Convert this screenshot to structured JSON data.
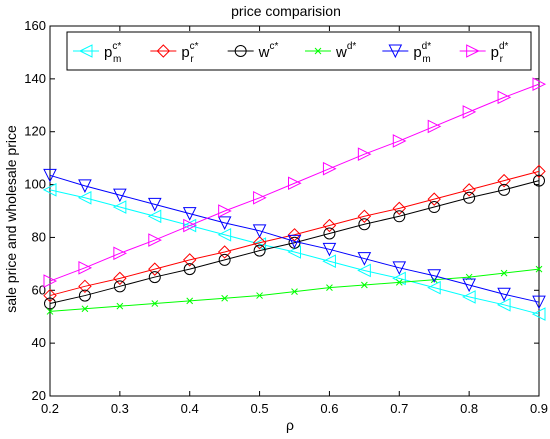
{
  "chart_data": {
    "type": "line",
    "title": "price comparision",
    "xlabel": "ρ",
    "ylabel": "sale price and wholesale price",
    "xlim": [
      0.2,
      0.9
    ],
    "ylim": [
      20,
      160
    ],
    "xticks": [
      "0.2",
      "0.3",
      "0.4",
      "0.5",
      "0.6",
      "0.7",
      "0.8",
      "0.9"
    ],
    "yticks": [
      "20",
      "40",
      "60",
      "80",
      "100",
      "120",
      "140",
      "160"
    ],
    "grid": false,
    "legend_position": "top",
    "x": [
      0.2,
      0.25,
      0.3,
      0.35,
      0.4,
      0.45,
      0.5,
      0.55,
      0.6,
      0.65,
      0.7,
      0.75,
      0.8,
      0.85,
      0.9
    ],
    "series": [
      {
        "name": "p_m^{c*}",
        "legend_base": "p",
        "legend_sub": "m",
        "legend_sup": "c*",
        "color": "#00ffff",
        "marker": "triangle-left",
        "values": [
          98,
          95,
          91.5,
          88,
          84.5,
          81,
          77.5,
          74.5,
          71,
          67.5,
          64.5,
          61,
          57.5,
          54.5,
          51
        ]
      },
      {
        "name": "p_r^{c*}",
        "legend_base": "p",
        "legend_sub": "r",
        "legend_sup": "c*",
        "color": "#ff0000",
        "marker": "diamond",
        "values": [
          58,
          61.5,
          64.5,
          68,
          71.5,
          74.5,
          78,
          81,
          84.5,
          88,
          91,
          94.5,
          98,
          101.5,
          105
        ]
      },
      {
        "name": "w^{c*}",
        "legend_base": "w",
        "legend_sub": "",
        "legend_sup": "c*",
        "color": "#000000",
        "marker": "circle",
        "values": [
          55,
          58,
          61.5,
          65,
          68,
          71.5,
          75,
          78,
          81.5,
          85,
          88,
          91.5,
          95,
          98,
          101.5
        ]
      },
      {
        "name": "w^{d*}",
        "legend_base": "w",
        "legend_sub": "",
        "legend_sup": "d*",
        "color": "#00ff00",
        "marker": "x",
        "values": [
          52,
          53,
          54,
          55,
          56,
          57,
          58,
          59.5,
          61,
          62,
          63,
          64,
          65,
          66.5,
          68
        ]
      },
      {
        "name": "p_m^{d*}",
        "legend_base": "p",
        "legend_sub": "m",
        "legend_sup": "d*",
        "color": "#0000ff",
        "marker": "triangle-down",
        "values": [
          103.5,
          99.5,
          96,
          92.5,
          89,
          85.5,
          82.5,
          78.5,
          75.5,
          72,
          68.5,
          65.5,
          62,
          58.5,
          55.5
        ]
      },
      {
        "name": "p_r^{d*}",
        "legend_base": "p",
        "legend_sub": "r",
        "legend_sup": "d*",
        "color": "#ff00ff",
        "marker": "triangle-right",
        "values": [
          63.5,
          68.5,
          74,
          79,
          84.5,
          90,
          95,
          100.5,
          106,
          111.5,
          116.5,
          122,
          127.5,
          133,
          138
        ]
      }
    ]
  }
}
